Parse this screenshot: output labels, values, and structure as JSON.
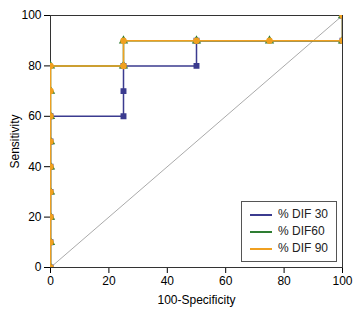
{
  "chart_data": {
    "type": "line",
    "x_label": "100-Specificity",
    "y_label": "Sensitivity",
    "xlim": [
      0,
      100
    ],
    "ylim": [
      0,
      100
    ],
    "xticks": [
      0,
      20,
      40,
      60,
      80,
      100
    ],
    "yticks": [
      0,
      20,
      40,
      60,
      80,
      100
    ],
    "grid": false,
    "legend": "lower right",
    "series": [
      {
        "name": "% DIF 30",
        "color": "#3b3b8f",
        "marker": "square",
        "x": [
          0,
          0,
          0,
          0,
          0,
          0,
          0,
          25,
          25,
          25,
          50,
          50,
          100,
          100
        ],
        "values": [
          0,
          10,
          20,
          30,
          40,
          50,
          60,
          60,
          70,
          80,
          80,
          90,
          90,
          100
        ]
      },
      {
        "name": "% DIF60",
        "color": "#2e7d32",
        "marker": "triangle",
        "x": [
          0,
          0,
          0,
          0,
          0,
          0,
          0,
          0,
          0,
          25,
          25,
          50,
          75,
          100,
          100
        ],
        "values": [
          0,
          10,
          20,
          30,
          40,
          50,
          60,
          70,
          80,
          80,
          90,
          90,
          90,
          90,
          100
        ]
      },
      {
        "name": "% DIF 90",
        "color": "#f0a020",
        "marker": "circle",
        "x": [
          0,
          0,
          0,
          0,
          0,
          0,
          0,
          0,
          0,
          25,
          25,
          50,
          75,
          100,
          100
        ],
        "values": [
          0,
          10,
          20,
          30,
          40,
          50,
          60,
          70,
          80,
          80,
          90,
          90,
          90,
          90,
          100
        ]
      }
    ]
  }
}
